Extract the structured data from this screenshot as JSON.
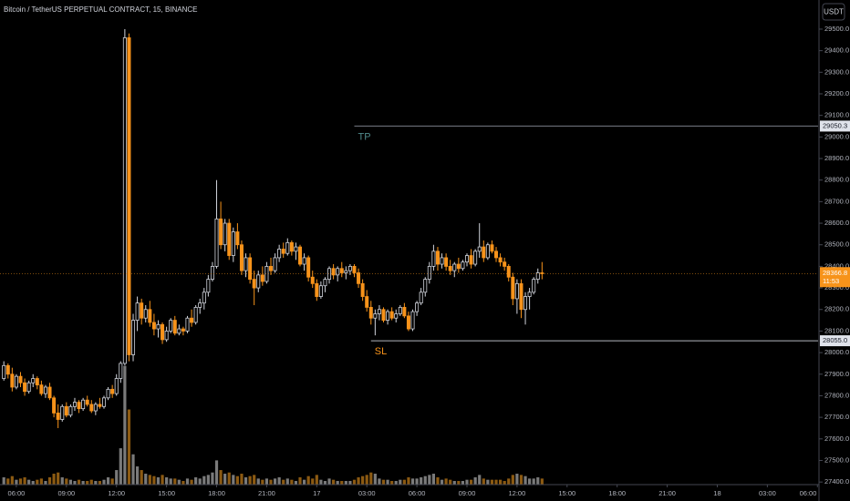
{
  "chart_data": {
    "type": "candlestick",
    "title": "Bitcoin / TetherUS PERPETUAL CONTRACT, 15, BINANCE",
    "currency_button": "USDT",
    "up_color": "#d1d4dc",
    "down_color": "#f7931a",
    "volume_up_color": "#7a7a7a",
    "volume_down_color": "#8c5a12",
    "xlim": [
      5.02,
      54.04
    ],
    "xticks": [
      {
        "value": 6,
        "label": "06:00"
      },
      {
        "value": 9,
        "label": "09:00"
      },
      {
        "value": 12,
        "label": "12:00"
      },
      {
        "value": 15,
        "label": "15:00"
      },
      {
        "value": 18,
        "label": "18:00"
      },
      {
        "value": 21,
        "label": "21:00"
      },
      {
        "value": 24,
        "label": "17"
      },
      {
        "value": 27,
        "label": "03:00"
      },
      {
        "value": 30,
        "label": "06:00"
      },
      {
        "value": 33,
        "label": "09:00"
      },
      {
        "value": 36,
        "label": "12:00"
      },
      {
        "value": 39,
        "label": "15:00"
      },
      {
        "value": 42,
        "label": "18:00"
      },
      {
        "value": 45,
        "label": "21:00"
      },
      {
        "value": 48,
        "label": "18"
      },
      {
        "value": 51,
        "label": "03:00"
      },
      {
        "value": 54,
        "label": "06:00"
      }
    ],
    "ylim": [
      27388,
      29635
    ],
    "yticks": [
      {
        "value": 27400,
        "label": "27400.0"
      },
      {
        "value": 27500,
        "label": "27500.0"
      },
      {
        "value": 27600,
        "label": "27600.0"
      },
      {
        "value": 27700,
        "label": "27700.0"
      },
      {
        "value": 27800,
        "label": "27800.0"
      },
      {
        "value": 27900,
        "label": "27900.0"
      },
      {
        "value": 28000,
        "label": "28000.0"
      },
      {
        "value": 28100,
        "label": "28100.0"
      },
      {
        "value": 28200,
        "label": "28200.0"
      },
      {
        "value": 28300,
        "label": "28300.0"
      },
      {
        "value": 28400,
        "label": "28400.0"
      },
      {
        "value": 28500,
        "label": "28500.0"
      },
      {
        "value": 28600,
        "label": "28600.0"
      },
      {
        "value": 28700,
        "label": "28700.0"
      },
      {
        "value": 28800,
        "label": "28800.0"
      },
      {
        "value": 28900,
        "label": "28900.0"
      },
      {
        "value": 29000,
        "label": "29000.0"
      },
      {
        "value": 29100,
        "label": "29100.0"
      },
      {
        "value": 29200,
        "label": "29200.0"
      },
      {
        "value": 29300,
        "label": "29300.0"
      },
      {
        "value": 29400,
        "label": "29400.0"
      },
      {
        "value": 29500,
        "label": "29500.0"
      }
    ],
    "volume_lim": [
      0,
      400
    ],
    "levels": [
      {
        "name": "TP",
        "price": 29050.3,
        "price_label": "29050.3",
        "from": 26.25,
        "line_color": "#787b86",
        "text_color": "#4f8a8b"
      },
      {
        "name": "SL",
        "price": 28055,
        "price_label": "28055.0",
        "from": 27.25,
        "line_color": "#b2b5be",
        "text_color": "#f7931a"
      }
    ],
    "last_price": {
      "price": 28366.8,
      "countdown": "11:53"
    },
    "candles": [
      [
        5.25,
        27880,
        27960,
        27870,
        27940,
        6
      ],
      [
        5.5,
        27940,
        27950,
        27880,
        27900,
        5
      ],
      [
        5.75,
        27900,
        27930,
        27820,
        27840,
        7
      ],
      [
        6,
        27840,
        27900,
        27830,
        27890,
        4
      ],
      [
        6.25,
        27890,
        27910,
        27840,
        27860,
        5
      ],
      [
        6.5,
        27860,
        27880,
        27800,
        27820,
        6
      ],
      [
        6.75,
        27820,
        27870,
        27810,
        27860,
        4
      ],
      [
        7,
        27860,
        27900,
        27840,
        27880,
        3
      ],
      [
        7.25,
        27880,
        27890,
        27830,
        27850,
        4
      ],
      [
        7.5,
        27850,
        27870,
        27800,
        27810,
        5
      ],
      [
        7.75,
        27810,
        27850,
        27790,
        27840,
        3
      ],
      [
        8,
        27840,
        27860,
        27780,
        27790,
        6
      ],
      [
        8.25,
        27790,
        27800,
        27700,
        27720,
        9
      ],
      [
        8.5,
        27720,
        27760,
        27650,
        27690,
        10
      ],
      [
        8.75,
        27690,
        27760,
        27680,
        27750,
        6
      ],
      [
        9,
        27750,
        27770,
        27700,
        27710,
        5
      ],
      [
        9.25,
        27710,
        27760,
        27700,
        27750,
        4
      ],
      [
        9.5,
        27750,
        27790,
        27730,
        27770,
        3
      ],
      [
        9.75,
        27770,
        27780,
        27720,
        27740,
        4
      ],
      [
        10,
        27740,
        27790,
        27730,
        27780,
        3
      ],
      [
        10.25,
        27780,
        27800,
        27750,
        27760,
        3
      ],
      [
        10.5,
        27760,
        27780,
        27720,
        27730,
        4
      ],
      [
        10.75,
        27730,
        27770,
        27710,
        27760,
        3
      ],
      [
        11,
        27760,
        27790,
        27740,
        27750,
        3
      ],
      [
        11.25,
        27750,
        27800,
        27740,
        27790,
        4
      ],
      [
        11.5,
        27790,
        27840,
        27780,
        27830,
        6
      ],
      [
        11.75,
        27830,
        27850,
        27790,
        27810,
        5
      ],
      [
        12,
        27810,
        27900,
        27800,
        27880,
        12
      ],
      [
        12.25,
        27880,
        27960,
        27860,
        27950,
        30
      ],
      [
        12.5,
        27950,
        29500,
        27940,
        29460,
        98
      ],
      [
        12.75,
        29460,
        29480,
        27960,
        27990,
        62
      ],
      [
        13,
        27990,
        28180,
        27960,
        28150,
        25
      ],
      [
        13.25,
        28150,
        28260,
        28100,
        28230,
        15
      ],
      [
        13.5,
        28230,
        28250,
        28130,
        28160,
        12
      ],
      [
        13.75,
        28160,
        28220,
        28140,
        28200,
        9
      ],
      [
        14,
        28200,
        28240,
        28120,
        28140,
        8
      ],
      [
        14.25,
        28140,
        28180,
        28080,
        28110,
        7
      ],
      [
        14.5,
        28110,
        28150,
        28070,
        28130,
        6
      ],
      [
        14.75,
        28130,
        28140,
        28040,
        28060,
        8
      ],
      [
        15,
        28060,
        28120,
        28050,
        28100,
        6
      ],
      [
        15.25,
        28100,
        28160,
        28090,
        28150,
        5
      ],
      [
        15.5,
        28150,
        28170,
        28080,
        28090,
        5
      ],
      [
        15.75,
        28090,
        28130,
        28080,
        28110,
        4
      ],
      [
        16,
        28110,
        28120,
        28080,
        28100,
        3
      ],
      [
        16.25,
        28100,
        28170,
        28090,
        28160,
        5
      ],
      [
        16.5,
        28160,
        28200,
        28120,
        28140,
        4
      ],
      [
        16.75,
        28140,
        28220,
        28130,
        28210,
        6
      ],
      [
        17,
        28210,
        28250,
        28180,
        28230,
        5
      ],
      [
        17.25,
        28230,
        28300,
        28200,
        28280,
        7
      ],
      [
        17.5,
        28280,
        28360,
        28260,
        28340,
        8
      ],
      [
        17.75,
        28340,
        28420,
        28330,
        28400,
        10
      ],
      [
        18,
        28400,
        28800,
        28390,
        28620,
        20
      ],
      [
        18.25,
        28620,
        28700,
        28480,
        28500,
        12
      ],
      [
        18.5,
        28500,
        28620,
        28470,
        28600,
        9
      ],
      [
        18.75,
        28600,
        28620,
        28430,
        28450,
        10
      ],
      [
        19,
        28450,
        28580,
        28420,
        28560,
        8
      ],
      [
        19.25,
        28560,
        28600,
        28480,
        28500,
        7
      ],
      [
        19.5,
        28500,
        28520,
        28360,
        28380,
        9
      ],
      [
        19.75,
        28380,
        28460,
        28350,
        28440,
        6
      ],
      [
        20,
        28440,
        28460,
        28320,
        28340,
        7
      ],
      [
        20.25,
        28340,
        28380,
        28220,
        28300,
        8
      ],
      [
        20.5,
        28300,
        28380,
        28280,
        28360,
        5
      ],
      [
        20.75,
        28360,
        28400,
        28310,
        28330,
        4
      ],
      [
        21,
        28330,
        28420,
        28320,
        28400,
        5
      ],
      [
        21.25,
        28400,
        28440,
        28360,
        28380,
        4
      ],
      [
        21.5,
        28380,
        28460,
        28370,
        28440,
        5
      ],
      [
        21.75,
        28440,
        28500,
        28420,
        28480,
        6
      ],
      [
        22,
        28480,
        28510,
        28440,
        28460,
        4
      ],
      [
        22.25,
        28460,
        28530,
        28450,
        28510,
        5
      ],
      [
        22.5,
        28510,
        28520,
        28450,
        28470,
        4
      ],
      [
        22.75,
        28470,
        28510,
        28430,
        28490,
        3
      ],
      [
        23,
        28490,
        28500,
        28400,
        28410,
        6
      ],
      [
        23.25,
        28410,
        28460,
        28380,
        28440,
        4
      ],
      [
        23.5,
        28440,
        28450,
        28330,
        28350,
        7
      ],
      [
        23.75,
        28350,
        28380,
        28300,
        28320,
        5
      ],
      [
        24,
        28320,
        28340,
        28240,
        28260,
        8
      ],
      [
        24.25,
        28260,
        28330,
        28250,
        28310,
        4
      ],
      [
        24.5,
        28310,
        28350,
        28280,
        28340,
        3
      ],
      [
        24.75,
        28340,
        28400,
        28320,
        28390,
        5
      ],
      [
        25,
        28390,
        28410,
        28340,
        28360,
        4
      ],
      [
        25.25,
        28360,
        28400,
        28330,
        28390,
        3
      ],
      [
        25.5,
        28390,
        28420,
        28350,
        28370,
        3
      ],
      [
        25.75,
        28370,
        28400,
        28340,
        28380,
        3
      ],
      [
        26,
        28380,
        28410,
        28360,
        28400,
        3
      ],
      [
        26.25,
        28400,
        28410,
        28350,
        28370,
        4
      ],
      [
        26.5,
        28370,
        28390,
        28300,
        28320,
        6
      ],
      [
        26.75,
        28320,
        28340,
        28240,
        28260,
        7
      ],
      [
        27,
        28260,
        28290,
        28190,
        28210,
        8
      ],
      [
        27.25,
        28210,
        28240,
        28130,
        28160,
        10
      ],
      [
        27.5,
        28160,
        28200,
        28080,
        28180,
        9
      ],
      [
        27.75,
        28180,
        28220,
        28150,
        28200,
        5
      ],
      [
        28,
        28200,
        28210,
        28140,
        28150,
        4
      ],
      [
        28.25,
        28150,
        28200,
        28130,
        28190,
        4
      ],
      [
        28.5,
        28190,
        28210,
        28150,
        28160,
        3
      ],
      [
        28.75,
        28160,
        28200,
        28140,
        28180,
        3
      ],
      [
        29,
        28180,
        28220,
        28170,
        28210,
        4
      ],
      [
        29.25,
        28210,
        28230,
        28160,
        28170,
        4
      ],
      [
        29.5,
        28170,
        28190,
        28100,
        28110,
        6
      ],
      [
        29.75,
        28110,
        28200,
        28100,
        28190,
        5
      ],
      [
        30,
        28190,
        28240,
        28170,
        28230,
        5
      ],
      [
        30.25,
        28230,
        28300,
        28220,
        28280,
        6
      ],
      [
        30.5,
        28280,
        28350,
        28260,
        28340,
        7
      ],
      [
        30.75,
        28340,
        28420,
        28320,
        28400,
        8
      ],
      [
        31,
        28400,
        28500,
        28380,
        28470,
        9
      ],
      [
        31.25,
        28470,
        28490,
        28380,
        28410,
        6
      ],
      [
        31.5,
        28410,
        28460,
        28390,
        28440,
        4
      ],
      [
        31.75,
        28440,
        28460,
        28380,
        28400,
        5
      ],
      [
        32,
        28400,
        28430,
        28360,
        28380,
        4
      ],
      [
        32.25,
        28380,
        28420,
        28350,
        28410,
        3
      ],
      [
        32.5,
        28410,
        28440,
        28370,
        28390,
        3
      ],
      [
        32.75,
        28390,
        28430,
        28380,
        28420,
        3
      ],
      [
        33,
        28420,
        28460,
        28400,
        28450,
        4
      ],
      [
        33.25,
        28450,
        28480,
        28390,
        28410,
        4
      ],
      [
        33.5,
        28410,
        28480,
        28400,
        28470,
        6
      ],
      [
        33.75,
        28470,
        28600,
        28440,
        28490,
        8
      ],
      [
        34,
        28490,
        28520,
        28420,
        28440,
        5
      ],
      [
        34.25,
        28440,
        28510,
        28430,
        28500,
        4
      ],
      [
        34.5,
        28500,
        28520,
        28460,
        28470,
        4
      ],
      [
        34.75,
        28470,
        28490,
        28420,
        28440,
        4
      ],
      [
        35,
        28440,
        28460,
        28400,
        28420,
        4
      ],
      [
        35.25,
        28420,
        28440,
        28380,
        28400,
        3
      ],
      [
        35.5,
        28400,
        28410,
        28330,
        28350,
        5
      ],
      [
        35.75,
        28350,
        28370,
        28220,
        28250,
        8
      ],
      [
        36,
        28250,
        28340,
        28180,
        28320,
        9
      ],
      [
        36.25,
        28320,
        28340,
        28160,
        28200,
        8
      ],
      [
        36.5,
        28200,
        28280,
        28130,
        28260,
        7
      ],
      [
        36.75,
        28260,
        28300,
        28200,
        28280,
        5
      ],
      [
        37,
        28280,
        28350,
        28270,
        28340,
        5
      ],
      [
        37.25,
        28340,
        28390,
        28320,
        28370,
        6
      ],
      [
        37.5,
        28370,
        28420,
        28340,
        28366.8,
        5
      ]
    ]
  }
}
